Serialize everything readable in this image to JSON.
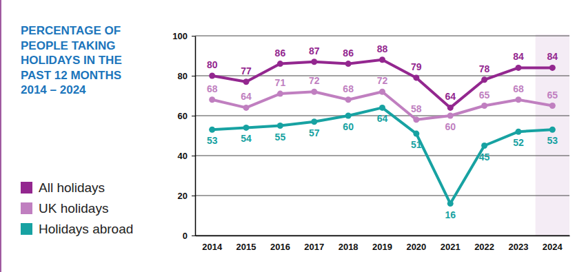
{
  "chart_data": {
    "type": "line",
    "title": "PERCENTAGE OF PEOPLE TAKING HOLIDAYS IN THE PAST 12 MONTHS 2014 – 2024",
    "categories": [
      "2014",
      "2015",
      "2016",
      "2017",
      "2018",
      "2019",
      "2020",
      "2021",
      "2022",
      "2023",
      "2024"
    ],
    "series": [
      {
        "name": "All holidays",
        "color": "#93278f",
        "values": [
          80,
          77,
          86,
          87,
          86,
          88,
          79,
          64,
          78,
          84,
          84
        ]
      },
      {
        "name": "UK holidays",
        "color": "#c07fc0",
        "values": [
          68,
          64,
          71,
          72,
          68,
          72,
          58,
          60,
          65,
          68,
          65
        ]
      },
      {
        "name": "Holidays abroad",
        "color": "#17a2a2",
        "values": [
          53,
          54,
          55,
          57,
          60,
          64,
          51,
          16,
          45,
          52,
          53
        ]
      }
    ],
    "ylim": [
      0,
      100
    ],
    "yticks": [
      0,
      20,
      40,
      60,
      80,
      100
    ],
    "grid": true,
    "legend": "bottom-left",
    "data_labels": true,
    "marker": "circle"
  }
}
